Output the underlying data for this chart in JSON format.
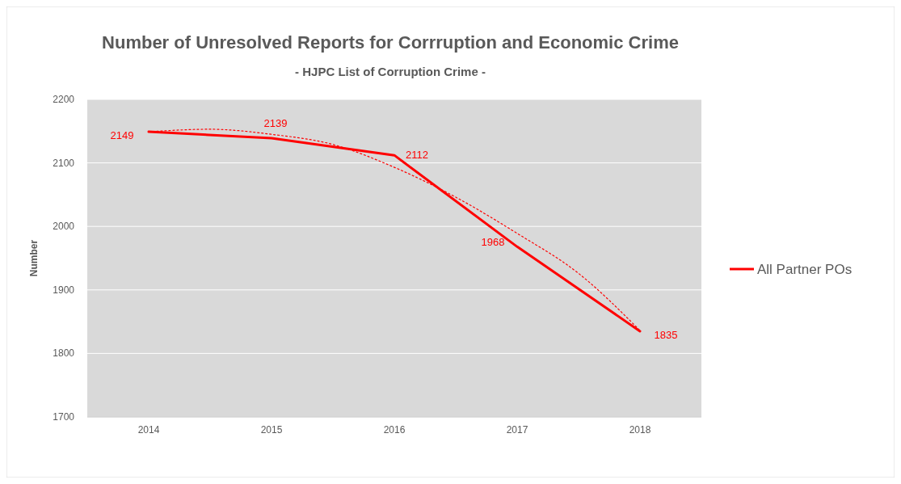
{
  "chart_data": {
    "type": "line",
    "title": "Number of Unresolved Reports for Corrruption and Economic Crime",
    "subtitle": "- HJPC List of Corruption Crime -",
    "ylabel": "Number",
    "x": [
      2014,
      2015,
      2016,
      2017,
      2018
    ],
    "xlim": [
      2013.5,
      2018.5
    ],
    "xticks": [
      2014,
      2015,
      2016,
      2017,
      2018
    ],
    "ylim": [
      1700,
      2200
    ],
    "yticks": [
      1700,
      1800,
      1900,
      2000,
      2100,
      2200
    ],
    "grid": "y",
    "legend": "right",
    "marker": "none",
    "series": [
      {
        "name": "All Partner POs",
        "color": "#ff0000",
        "values": [
          2149,
          2139,
          2112,
          1968,
          1835
        ],
        "value_labels": [
          "2149",
          "2139",
          "2112",
          "1968",
          "1835"
        ],
        "line_style": "solid"
      },
      {
        "type": "line",
        "color": "#ff0000",
        "line_style": "dotted",
        "x": [
          2014,
          2014.5,
          2015,
          2015.5,
          2016,
          2016.5,
          2017,
          2017.5,
          2018
        ],
        "values": [
          2149,
          2153,
          2145,
          2129,
          2093,
          2046,
          1989,
          1926,
          1836
        ]
      }
    ]
  }
}
